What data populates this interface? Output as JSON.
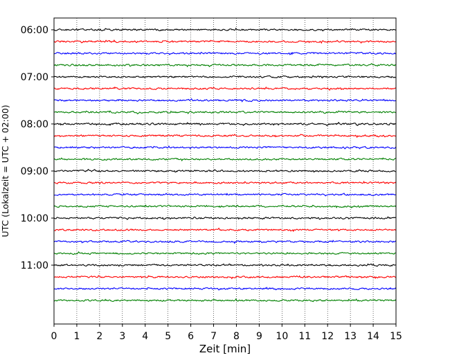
{
  "chart_data": {
    "type": "line",
    "title": "",
    "xlabel": "Zeit  [min]",
    "ylabel": "UTC (Lokalzeit = UTC + 02:00)",
    "xlim": [
      0,
      15
    ],
    "x_ticks": [
      0,
      1,
      2,
      3,
      4,
      5,
      6,
      7,
      8,
      9,
      10,
      11,
      12,
      13,
      14,
      15
    ],
    "y_ticks": [
      "06:00",
      "07:00",
      "08:00",
      "09:00",
      "10:00",
      "11:00"
    ],
    "y_range": [
      "05:45",
      "12:15"
    ],
    "trace_interval_min": 15,
    "trace_times": [
      "06:00",
      "06:15",
      "06:30",
      "06:45",
      "07:00",
      "07:15",
      "07:30",
      "07:45",
      "08:00",
      "08:15",
      "08:30",
      "08:45",
      "09:00",
      "09:15",
      "09:30",
      "09:45",
      "10:00",
      "10:15",
      "10:30",
      "10:45",
      "11:00",
      "11:15",
      "11:30",
      "11:45"
    ],
    "trace_colors": [
      "#000000",
      "#ff0000",
      "#0000ff",
      "#008000"
    ],
    "grid": "vertical dotted",
    "legend": "none"
  }
}
